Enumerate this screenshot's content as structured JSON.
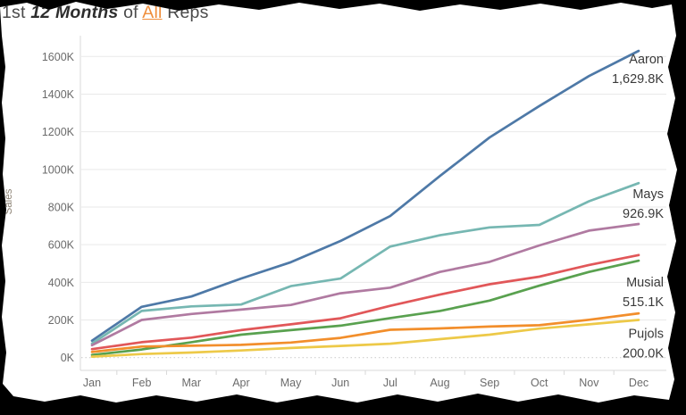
{
  "title": {
    "prefix": "1st ",
    "param_months": "12 Months",
    "middle": " of ",
    "param_reps": "All",
    "suffix": " Reps"
  },
  "chart_data": {
    "type": "line",
    "title": "1st 12 Months of All Reps",
    "xlabel": "",
    "ylabel": "Sales",
    "x": [
      "Jan",
      "Feb",
      "Mar",
      "Apr",
      "May",
      "Jun",
      "Jul",
      "Aug",
      "Sep",
      "Oct",
      "Nov",
      "Dec"
    ],
    "ylim": [
      0,
      1700
    ],
    "grid": "horizontal",
    "legend_position": "line-end-labels",
    "yticks": [
      {
        "value": 0,
        "label": "0K"
      },
      {
        "value": 200,
        "label": "200K"
      },
      {
        "value": 400,
        "label": "400K"
      },
      {
        "value": 600,
        "label": "600K"
      },
      {
        "value": 800,
        "label": "800K"
      },
      {
        "value": 1000,
        "label": "1000K"
      },
      {
        "value": 1200,
        "label": "1200K"
      },
      {
        "value": 1400,
        "label": "1400K"
      },
      {
        "value": 1600,
        "label": "1600K"
      }
    ],
    "unit": "K (sales, cumulative)",
    "series": [
      {
        "color": "#4e79a7",
        "values": [
          90,
          270,
          325,
          420,
          507,
          620,
          752,
          965,
          1170,
          1337,
          1496,
          1629.8
        ],
        "end_label": {
          "name": "Aaron",
          "value": "1,629.8K"
        }
      },
      {
        "color": "#76b7b2",
        "values": [
          75,
          248,
          272,
          282,
          380,
          420,
          590,
          650,
          692,
          705,
          831,
          926.9
        ],
        "end_label": {
          "name": "Mays",
          "value": "926.9K"
        }
      },
      {
        "color": "#b07aa1",
        "values": [
          66,
          200,
          232,
          255,
          280,
          342,
          372,
          455,
          509,
          596,
          675,
          710
        ]
      },
      {
        "color": "#e15759",
        "values": [
          45,
          82,
          106,
          146,
          177,
          209,
          275,
          335,
          390,
          430,
          492,
          545
        ]
      },
      {
        "color": "#59a14f",
        "values": [
          14,
          43,
          82,
          122,
          146,
          170,
          210,
          248,
          303,
          382,
          455,
          515.1
        ],
        "end_label": {
          "name": "Musial",
          "value": "515.1K"
        }
      },
      {
        "color": "#f28e2b",
        "values": [
          30,
          59,
          63,
          68,
          80,
          105,
          148,
          155,
          165,
          172,
          201,
          235
        ]
      },
      {
        "color": "#edc948",
        "values": [
          5,
          19,
          27,
          38,
          51,
          62,
          74,
          98,
          122,
          154,
          177,
          200
        ],
        "end_label": {
          "name": "Pujols",
          "value": "200.0K"
        }
      }
    ],
    "colors": {
      "axis_text": "#6b6b6b",
      "axis_title": "#8c8274",
      "grid_line": "#e9e9e9",
      "zero_line": "#cfcfcf",
      "axis_line": "#d8d8d8",
      "end_label_text": "#3a3a3a",
      "title_text": "#4a4a4a",
      "title_param": "#2d2d2d",
      "title_link": "#ef8e3b"
    }
  }
}
